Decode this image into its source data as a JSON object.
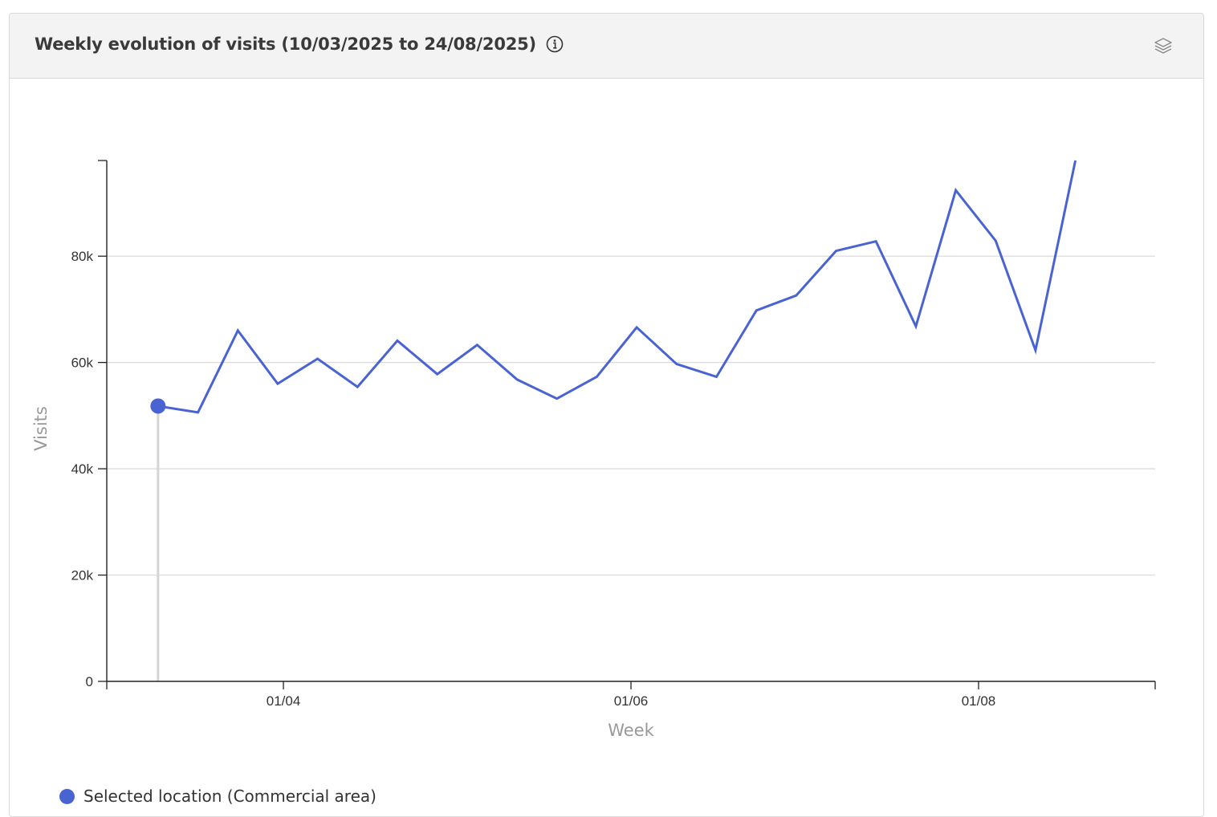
{
  "header": {
    "title": "Weekly evolution of visits (10/03/2025 to 24/08/2025)",
    "info_icon": "info-icon",
    "layers_icon": "layers-icon"
  },
  "colors": {
    "series": "#4a63d3",
    "grid": "#d9d9d9",
    "axis": "#222222",
    "axis_label": "#999999",
    "marker_line": "#d5d5d5"
  },
  "legend": {
    "items": [
      {
        "label": "Selected location (Commercial area)",
        "color": "#4a63d3"
      }
    ]
  },
  "chart_data": {
    "type": "line",
    "title": "Weekly evolution of visits (10/03/2025 to 24/08/2025)",
    "xlabel": "Week",
    "ylabel": "Visits",
    "x_tick_labels": [
      "01/04",
      "01/06",
      "01/08"
    ],
    "x_tick_dates": [
      "2025-04-01",
      "2025-06-01",
      "2025-08-01"
    ],
    "x_range": [
      "2025-03-01",
      "2025-09-01"
    ],
    "y_ticks": [
      0,
      20000,
      40000,
      60000,
      80000
    ],
    "y_tick_labels": [
      "0",
      "20k",
      "40k",
      "60k",
      "80k"
    ],
    "ylim": [
      0,
      98000
    ],
    "grid": true,
    "legend_position": "bottom-left",
    "highlighted_point_index": 0,
    "series": [
      {
        "name": "Selected location (Commercial area)",
        "x": [
          "2025-03-10",
          "2025-03-17",
          "2025-03-24",
          "2025-03-31",
          "2025-04-07",
          "2025-04-14",
          "2025-04-21",
          "2025-04-28",
          "2025-05-05",
          "2025-05-12",
          "2025-05-19",
          "2025-05-26",
          "2025-06-02",
          "2025-06-09",
          "2025-06-16",
          "2025-06-23",
          "2025-06-30",
          "2025-07-07",
          "2025-07-14",
          "2025-07-21",
          "2025-07-28",
          "2025-08-04",
          "2025-08-11",
          "2025-08-18"
        ],
        "values": [
          51800,
          50600,
          66000,
          56000,
          60700,
          55400,
          64100,
          57800,
          63300,
          56800,
          53200,
          57300,
          66600,
          59700,
          57300,
          69800,
          72600,
          81000,
          82800,
          66800,
          92400,
          82900,
          62300,
          98000
        ]
      }
    ]
  }
}
